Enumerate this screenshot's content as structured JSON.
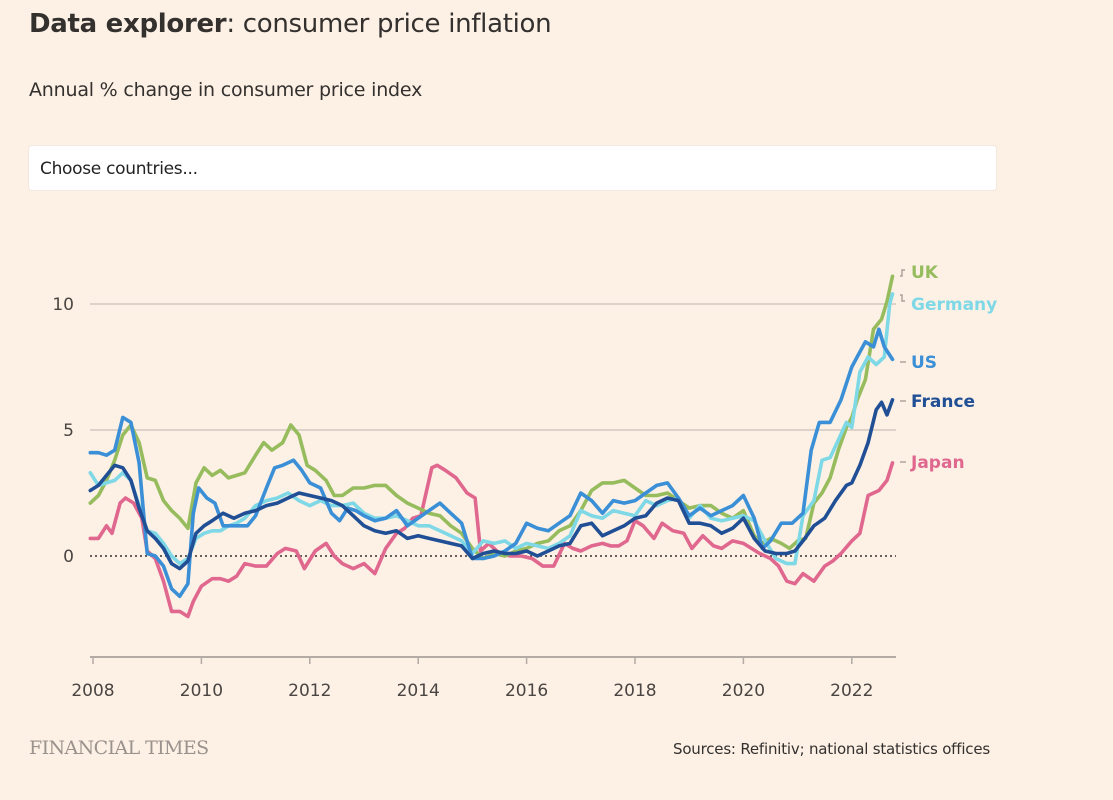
{
  "header": {
    "title_bold": "Data explorer",
    "title_rest": ": consumer price inflation",
    "subtitle": "Annual % change in consumer price index"
  },
  "country_select": {
    "placeholder": "Choose countries..."
  },
  "footer": {
    "brand": "FINANCIAL TIMES",
    "sources": "Sources: Refinitiv; national statistics offices"
  },
  "chart_data": {
    "type": "line",
    "title": "Data explorer: consumer price inflation",
    "subtitle": "Annual % change in consumer price index",
    "xlabel": "",
    "ylabel": "",
    "xlim": [
      2007.95,
      2022.75
    ],
    "ylim": [
      -4,
      12
    ],
    "y_ticks": [
      0,
      5,
      10
    ],
    "y_tick_labels": [
      "0",
      "5",
      "10"
    ],
    "x_ticks": [
      2008,
      2010,
      2012,
      2014,
      2016,
      2018,
      2020,
      2022
    ],
    "x_tick_labels": [
      "2008",
      "2010",
      "2012",
      "2014",
      "2016",
      "2018",
      "2020",
      "2022"
    ],
    "grid": "horizontal",
    "zero_line": "dotted",
    "legend": "direct labels at right end of lines",
    "series": [
      {
        "name": "Japan",
        "color": "#e0688f",
        "x": [
          2007.95,
          2008.1,
          2008.25,
          2008.35,
          2008.5,
          2008.6,
          2008.75,
          2008.9,
          2009.0,
          2009.15,
          2009.3,
          2009.45,
          2009.6,
          2009.75,
          2009.85,
          2010.0,
          2010.2,
          2010.35,
          2010.5,
          2010.65,
          2010.8,
          2011.0,
          2011.2,
          2011.4,
          2011.55,
          2011.75,
          2011.9,
          2012.1,
          2012.3,
          2012.45,
          2012.6,
          2012.8,
          2013.0,
          2013.2,
          2013.4,
          2013.6,
          2013.75,
          2013.9,
          2014.05,
          2014.25,
          2014.35,
          2014.5,
          2014.7,
          2014.9,
          2015.05,
          2015.15,
          2015.3,
          2015.5,
          2015.7,
          2015.9,
          2016.1,
          2016.3,
          2016.5,
          2016.7,
          2016.85,
          2017.0,
          2017.2,
          2017.4,
          2017.55,
          2017.7,
          2017.85,
          2018.0,
          2018.15,
          2018.35,
          2018.5,
          2018.7,
          2018.9,
          2019.05,
          2019.25,
          2019.45,
          2019.6,
          2019.8,
          2020.0,
          2020.15,
          2020.3,
          2020.5,
          2020.65,
          2020.8,
          2020.95,
          2021.1,
          2021.3,
          2021.5,
          2021.65,
          2021.8,
          2022.0,
          2022.15,
          2022.3,
          2022.5,
          2022.65,
          2022.75
        ],
        "values": [
          0.7,
          0.7,
          1.2,
          0.9,
          2.1,
          2.3,
          2.1,
          1.5,
          0.2,
          -0.1,
          -1.0,
          -2.2,
          -2.2,
          -2.4,
          -1.8,
          -1.2,
          -0.9,
          -0.9,
          -1.0,
          -0.8,
          -0.3,
          -0.4,
          -0.4,
          0.1,
          0.3,
          0.2,
          -0.5,
          0.2,
          0.5,
          0.0,
          -0.3,
          -0.5,
          -0.3,
          -0.7,
          0.3,
          0.9,
          1.1,
          1.5,
          1.6,
          3.5,
          3.6,
          3.4,
          3.1,
          2.5,
          2.3,
          0.2,
          0.5,
          0.1,
          0.0,
          0.0,
          -0.1,
          -0.4,
          -0.4,
          0.5,
          0.3,
          0.2,
          0.4,
          0.5,
          0.4,
          0.4,
          0.6,
          1.4,
          1.2,
          0.7,
          1.3,
          1.0,
          0.9,
          0.3,
          0.8,
          0.4,
          0.3,
          0.6,
          0.5,
          0.3,
          0.1,
          -0.1,
          -0.4,
          -1.0,
          -1.1,
          -0.7,
          -1.0,
          -0.4,
          -0.2,
          0.1,
          0.6,
          0.9,
          2.4,
          2.6,
          3.0,
          3.7
        ]
      },
      {
        "name": "UK",
        "color": "#96bc5d",
        "x": [
          2007.95,
          2008.1,
          2008.25,
          2008.4,
          2008.55,
          2008.7,
          2008.85,
          2009.0,
          2009.15,
          2009.3,
          2009.45,
          2009.6,
          2009.75,
          2009.9,
          2010.05,
          2010.2,
          2010.35,
          2010.5,
          2010.65,
          2010.8,
          2011.0,
          2011.15,
          2011.3,
          2011.5,
          2011.65,
          2011.8,
          2011.95,
          2012.1,
          2012.3,
          2012.45,
          2012.6,
          2012.8,
          2013.0,
          2013.2,
          2013.4,
          2013.6,
          2013.8,
          2014.0,
          2014.2,
          2014.4,
          2014.6,
          2014.8,
          2015.0,
          2015.2,
          2015.4,
          2015.6,
          2015.8,
          2016.0,
          2016.2,
          2016.4,
          2016.6,
          2016.8,
          2017.0,
          2017.2,
          2017.4,
          2017.6,
          2017.8,
          2018.0,
          2018.2,
          2018.4,
          2018.6,
          2018.8,
          2019.0,
          2019.2,
          2019.4,
          2019.6,
          2019.8,
          2020.0,
          2020.2,
          2020.35,
          2020.5,
          2020.7,
          2020.85,
          2021.0,
          2021.15,
          2021.3,
          2021.45,
          2021.6,
          2021.75,
          2021.9,
          2022.0,
          2022.1,
          2022.25,
          2022.4,
          2022.55,
          2022.65,
          2022.75
        ],
        "values": [
          2.1,
          2.4,
          3.0,
          3.8,
          4.8,
          5.2,
          4.5,
          3.1,
          3.0,
          2.2,
          1.8,
          1.5,
          1.1,
          2.9,
          3.5,
          3.2,
          3.4,
          3.1,
          3.2,
          3.3,
          4.0,
          4.5,
          4.2,
          4.5,
          5.2,
          4.8,
          3.6,
          3.4,
          3.0,
          2.4,
          2.4,
          2.7,
          2.7,
          2.8,
          2.8,
          2.4,
          2.1,
          1.9,
          1.7,
          1.6,
          1.2,
          0.9,
          0.3,
          -0.1,
          0.1,
          0.0,
          0.2,
          0.3,
          0.5,
          0.6,
          1.0,
          1.2,
          1.8,
          2.6,
          2.9,
          2.9,
          3.0,
          2.7,
          2.4,
          2.4,
          2.5,
          2.2,
          1.9,
          2.0,
          2.0,
          1.7,
          1.5,
          1.8,
          0.8,
          0.5,
          0.7,
          0.5,
          0.3,
          0.6,
          0.7,
          2.1,
          2.5,
          3.1,
          4.2,
          5.1,
          5.5,
          6.2,
          7.0,
          9.0,
          9.4,
          10.1,
          11.1
        ]
      },
      {
        "name": "Germany",
        "color": "#7ed8e6",
        "x": [
          2007.95,
          2008.1,
          2008.25,
          2008.4,
          2008.55,
          2008.7,
          2008.85,
          2009.0,
          2009.15,
          2009.3,
          2009.45,
          2009.6,
          2009.75,
          2009.9,
          2010.05,
          2010.2,
          2010.35,
          2010.5,
          2010.65,
          2010.8,
          2011.0,
          2011.2,
          2011.4,
          2011.6,
          2011.8,
          2012.0,
          2012.2,
          2012.4,
          2012.6,
          2012.8,
          2013.0,
          2013.2,
          2013.4,
          2013.6,
          2013.8,
          2014.0,
          2014.2,
          2014.4,
          2014.6,
          2014.8,
          2015.0,
          2015.2,
          2015.4,
          2015.6,
          2015.8,
          2016.0,
          2016.2,
          2016.4,
          2016.6,
          2016.8,
          2017.0,
          2017.2,
          2017.4,
          2017.6,
          2017.8,
          2018.0,
          2018.2,
          2018.4,
          2018.6,
          2018.8,
          2019.0,
          2019.2,
          2019.4,
          2019.6,
          2019.8,
          2020.0,
          2020.2,
          2020.4,
          2020.6,
          2020.8,
          2020.95,
          2021.1,
          2021.3,
          2021.45,
          2021.6,
          2021.75,
          2021.9,
          2022.0,
          2022.15,
          2022.3,
          2022.45,
          2022.6,
          2022.7,
          2022.75
        ],
        "values": [
          3.3,
          2.8,
          2.9,
          3.0,
          3.3,
          3.0,
          2.0,
          1.0,
          0.9,
          0.5,
          0.0,
          -0.3,
          -0.1,
          0.7,
          0.9,
          1.0,
          1.0,
          1.2,
          1.3,
          1.5,
          2.0,
          2.2,
          2.3,
          2.5,
          2.2,
          2.0,
          2.2,
          2.0,
          2.0,
          2.1,
          1.7,
          1.5,
          1.5,
          1.6,
          1.4,
          1.2,
          1.2,
          1.0,
          0.8,
          0.6,
          0.1,
          0.6,
          0.5,
          0.6,
          0.3,
          0.5,
          0.4,
          0.3,
          0.5,
          0.8,
          1.8,
          1.6,
          1.5,
          1.8,
          1.7,
          1.6,
          2.2,
          2.0,
          2.2,
          2.3,
          1.5,
          2.0,
          1.5,
          1.4,
          1.5,
          1.6,
          1.4,
          0.6,
          -0.1,
          -0.3,
          -0.3,
          1.6,
          2.2,
          3.8,
          3.9,
          4.6,
          5.3,
          5.1,
          7.3,
          7.9,
          7.6,
          7.9,
          10.0,
          10.4
        ]
      },
      {
        "name": "US",
        "color": "#3a8fd6",
        "x": [
          2007.95,
          2008.1,
          2008.25,
          2008.4,
          2008.55,
          2008.7,
          2008.85,
          2009.0,
          2009.15,
          2009.3,
          2009.45,
          2009.6,
          2009.75,
          2009.85,
          2009.95,
          2010.1,
          2010.25,
          2010.4,
          2010.55,
          2010.7,
          2010.85,
          2011.0,
          2011.2,
          2011.35,
          2011.5,
          2011.7,
          2011.85,
          2012.0,
          2012.2,
          2012.4,
          2012.55,
          2012.7,
          2012.85,
          2013.0,
          2013.2,
          2013.4,
          2013.6,
          2013.8,
          2014.0,
          2014.2,
          2014.4,
          2014.6,
          2014.8,
          2015.0,
          2015.2,
          2015.4,
          2015.6,
          2015.8,
          2016.0,
          2016.2,
          2016.4,
          2016.6,
          2016.8,
          2017.0,
          2017.2,
          2017.4,
          2017.6,
          2017.8,
          2018.0,
          2018.2,
          2018.4,
          2018.6,
          2018.8,
          2019.0,
          2019.2,
          2019.4,
          2019.6,
          2019.8,
          2020.0,
          2020.2,
          2020.35,
          2020.5,
          2020.7,
          2020.9,
          2021.1,
          2021.25,
          2021.4,
          2021.6,
          2021.8,
          2022.0,
          2022.1,
          2022.25,
          2022.4,
          2022.5,
          2022.6,
          2022.75
        ],
        "values": [
          4.1,
          4.1,
          4.0,
          4.2,
          5.5,
          5.3,
          3.7,
          0.1,
          0.0,
          -0.4,
          -1.3,
          -1.6,
          -1.1,
          1.7,
          2.7,
          2.3,
          2.1,
          1.2,
          1.2,
          1.2,
          1.2,
          1.6,
          2.7,
          3.5,
          3.6,
          3.8,
          3.4,
          2.9,
          2.7,
          1.7,
          1.4,
          1.9,
          1.8,
          1.6,
          1.4,
          1.5,
          1.8,
          1.2,
          1.5,
          1.8,
          2.1,
          1.7,
          1.3,
          -0.1,
          -0.1,
          0.0,
          0.2,
          0.5,
          1.3,
          1.1,
          1.0,
          1.3,
          1.6,
          2.5,
          2.2,
          1.7,
          2.2,
          2.1,
          2.2,
          2.5,
          2.8,
          2.9,
          2.3,
          1.6,
          1.9,
          1.6,
          1.8,
          2.0,
          2.4,
          1.5,
          0.3,
          0.6,
          1.3,
          1.3,
          1.7,
          4.2,
          5.3,
          5.3,
          6.2,
          7.5,
          7.9,
          8.5,
          8.3,
          9.0,
          8.3,
          7.8
        ]
      },
      {
        "name": "France",
        "color": "#204f95",
        "x": [
          2007.95,
          2008.1,
          2008.25,
          2008.4,
          2008.55,
          2008.7,
          2008.85,
          2009.0,
          2009.15,
          2009.3,
          2009.45,
          2009.6,
          2009.75,
          2009.9,
          2010.05,
          2010.2,
          2010.4,
          2010.6,
          2010.8,
          2011.0,
          2011.2,
          2011.4,
          2011.6,
          2011.8,
          2012.0,
          2012.2,
          2012.4,
          2012.6,
          2012.8,
          2013.0,
          2013.2,
          2013.4,
          2013.6,
          2013.8,
          2014.0,
          2014.2,
          2014.4,
          2014.6,
          2014.8,
          2015.0,
          2015.2,
          2015.4,
          2015.6,
          2015.8,
          2016.0,
          2016.2,
          2016.4,
          2016.6,
          2016.8,
          2017.0,
          2017.2,
          2017.4,
          2017.6,
          2017.8,
          2018.0,
          2018.2,
          2018.4,
          2018.6,
          2018.8,
          2019.0,
          2019.2,
          2019.4,
          2019.6,
          2019.8,
          2020.0,
          2020.2,
          2020.4,
          2020.6,
          2020.8,
          2020.95,
          2021.1,
          2021.3,
          2021.5,
          2021.7,
          2021.9,
          2022.0,
          2022.15,
          2022.3,
          2022.45,
          2022.55,
          2022.65,
          2022.75
        ],
        "values": [
          2.6,
          2.8,
          3.2,
          3.6,
          3.5,
          3.0,
          1.9,
          1.0,
          0.7,
          0.3,
          -0.3,
          -0.5,
          -0.2,
          0.9,
          1.2,
          1.4,
          1.7,
          1.5,
          1.7,
          1.8,
          2.0,
          2.1,
          2.3,
          2.5,
          2.4,
          2.3,
          2.2,
          2.0,
          1.6,
          1.2,
          1.0,
          0.9,
          1.0,
          0.7,
          0.8,
          0.7,
          0.6,
          0.5,
          0.4,
          -0.1,
          0.1,
          0.2,
          0.1,
          0.1,
          0.2,
          0.0,
          0.2,
          0.4,
          0.5,
          1.2,
          1.3,
          0.8,
          1.0,
          1.2,
          1.5,
          1.6,
          2.1,
          2.3,
          2.2,
          1.3,
          1.3,
          1.2,
          0.9,
          1.1,
          1.5,
          0.7,
          0.2,
          0.1,
          0.1,
          0.2,
          0.6,
          1.2,
          1.5,
          2.2,
          2.8,
          2.9,
          3.6,
          4.5,
          5.8,
          6.1,
          5.6,
          6.2
        ]
      }
    ],
    "end_labels": [
      {
        "name": "UK",
        "color": "#96bc5d"
      },
      {
        "name": "Germany",
        "color": "#7ed8e6"
      },
      {
        "name": "US",
        "color": "#3a8fd6"
      },
      {
        "name": "France",
        "color": "#204f95"
      },
      {
        "name": "Japan",
        "color": "#e0688f"
      }
    ]
  }
}
